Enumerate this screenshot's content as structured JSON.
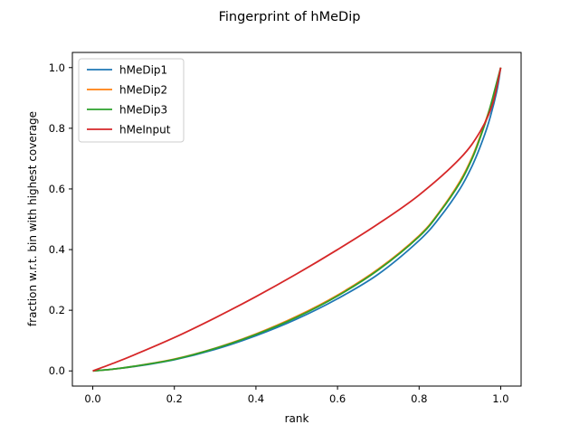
{
  "chart_data": {
    "type": "line",
    "title": "Fingerprint of hMeDip",
    "xlabel": "rank",
    "ylabel": "fraction w.r.t. bin with highest coverage",
    "xlim": [
      -0.05,
      1.05
    ],
    "ylim": [
      -0.05,
      1.05
    ],
    "xticks": [
      "0.0",
      "0.2",
      "0.4",
      "0.6",
      "0.8",
      "1.0"
    ],
    "yticks": [
      "0.0",
      "0.2",
      "0.4",
      "0.6",
      "0.8",
      "1.0"
    ],
    "grid": false,
    "legend_position": "upper-left",
    "series": [
      {
        "name": "hMeDip1",
        "color": "#1f77b4",
        "x": [
          0.0,
          0.05,
          0.1,
          0.2,
          0.3,
          0.4,
          0.5,
          0.6,
          0.7,
          0.8,
          0.85,
          0.9,
          0.93,
          0.95,
          0.97,
          0.99,
          1.0
        ],
        "y": [
          0.0,
          0.006,
          0.014,
          0.037,
          0.071,
          0.116,
          0.171,
          0.238,
          0.319,
          0.43,
          0.505,
          0.6,
          0.676,
          0.74,
          0.817,
          0.92,
          1.0
        ]
      },
      {
        "name": "hMeDip2",
        "color": "#ff7f0e",
        "x": [
          0.0,
          0.05,
          0.1,
          0.2,
          0.3,
          0.4,
          0.5,
          0.6,
          0.7,
          0.8,
          0.85,
          0.9,
          0.93,
          0.95,
          0.97,
          0.99,
          1.0
        ],
        "y": [
          0.0,
          0.006,
          0.015,
          0.039,
          0.075,
          0.122,
          0.18,
          0.25,
          0.336,
          0.446,
          0.525,
          0.625,
          0.705,
          0.775,
          0.852,
          0.94,
          1.0
        ]
      },
      {
        "name": "hMeDip3",
        "color": "#2ca02c",
        "x": [
          0.0,
          0.05,
          0.1,
          0.2,
          0.3,
          0.4,
          0.5,
          0.6,
          0.7,
          0.8,
          0.85,
          0.9,
          0.93,
          0.95,
          0.97,
          0.99,
          1.0
        ],
        "y": [
          0.0,
          0.006,
          0.015,
          0.038,
          0.074,
          0.12,
          0.177,
          0.247,
          0.333,
          0.443,
          0.522,
          0.62,
          0.7,
          0.77,
          0.85,
          0.95,
          1.0
        ]
      },
      {
        "name": "hMeInput",
        "color": "#d62728",
        "x": [
          0.0,
          0.05,
          0.1,
          0.2,
          0.3,
          0.4,
          0.5,
          0.6,
          0.7,
          0.8,
          0.9,
          0.95,
          0.98,
          1.0
        ],
        "y": [
          0.0,
          0.025,
          0.052,
          0.11,
          0.175,
          0.245,
          0.32,
          0.4,
          0.485,
          0.58,
          0.7,
          0.79,
          0.88,
          1.0
        ]
      }
    ]
  }
}
